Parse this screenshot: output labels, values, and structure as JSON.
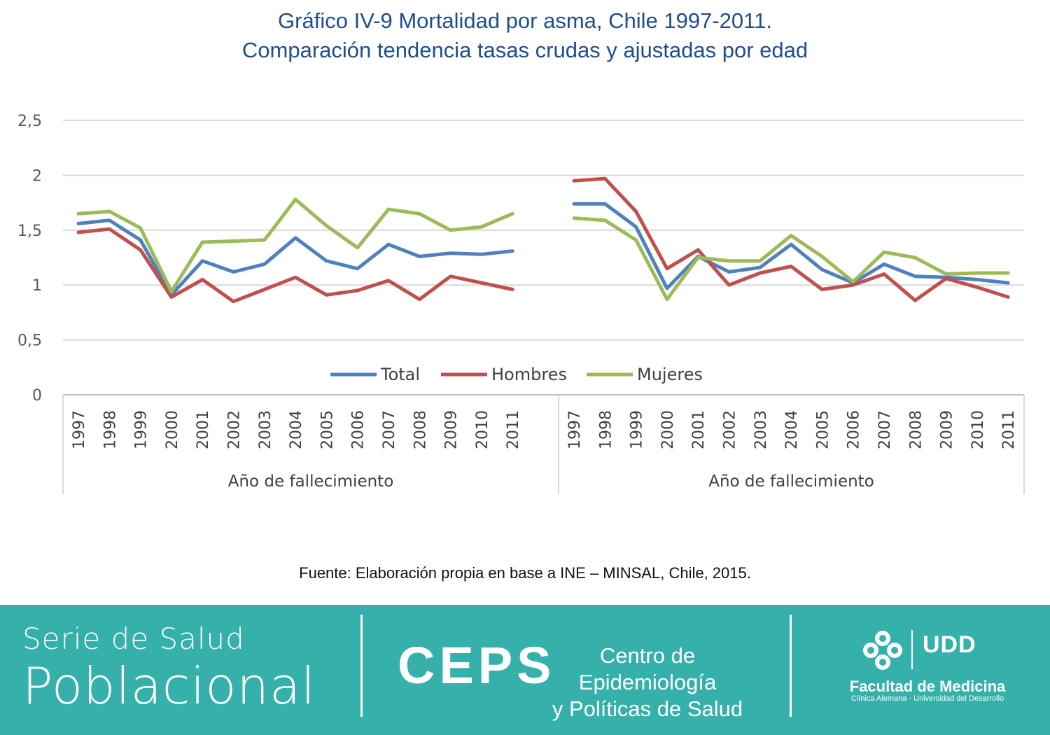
{
  "title_line1": "Gráfico IV-9 Mortalidad por asma, Chile 1997-2011.",
  "title_line2": "Comparación tendencia tasas crudas y ajustadas por edad",
  "source": "Fuente: Elaboración propia en base a INE – MINSAL, Chile, 2015.",
  "footer": {
    "serie_line1": "Serie de Salud",
    "serie_line2": "Poblacional",
    "ceps": "CEPS",
    "ceps_line1": "Centro de Epidemiología",
    "ceps_line2": "y Políticas de Salud",
    "udd": "UDD",
    "facultad": "Facultad de Medicina",
    "facultad_sub": "Clínica Alemana - Universidad del Desarrollo",
    "logo_icon": "ceps-cross-logo-icon"
  },
  "chart_data": {
    "type": "line",
    "ylim": [
      0,
      2.5
    ],
    "y_ticks": [
      "0",
      "0,5",
      "1",
      "1,5",
      "2",
      "2,5"
    ],
    "grid": true,
    "legend_position": "inside-bottom-center",
    "groups": [
      {
        "xlabel": "Año de fallecimiento",
        "categories": [
          "1997",
          "1998",
          "1999",
          "2000",
          "2001",
          "2002",
          "2003",
          "2004",
          "2005",
          "2006",
          "2007",
          "2008",
          "2009",
          "2010",
          "2011"
        ],
        "series": [
          {
            "name": "Total",
            "color": "#4f81bd",
            "values": [
              1.56,
              1.59,
              1.41,
              0.91,
              1.22,
              1.12,
              1.19,
              1.43,
              1.22,
              1.15,
              1.37,
              1.26,
              1.29,
              1.28,
              1.31
            ]
          },
          {
            "name": "Hombres",
            "color": "#c0504d",
            "values": [
              1.48,
              1.51,
              1.32,
              0.89,
              1.05,
              0.85,
              0.96,
              1.07,
              0.91,
              0.95,
              1.04,
              0.87,
              1.08,
              1.02,
              0.96
            ]
          },
          {
            "name": "Mujeres",
            "color": "#9bbb59",
            "values": [
              1.65,
              1.67,
              1.52,
              0.94,
              1.39,
              1.4,
              1.41,
              1.78,
              1.54,
              1.34,
              1.69,
              1.65,
              1.5,
              1.53,
              1.65
            ]
          }
        ]
      },
      {
        "xlabel": "Año de fallecimiento",
        "categories": [
          "1997",
          "1998",
          "1999",
          "2000",
          "2001",
          "2002",
          "2003",
          "2004",
          "2005",
          "2006",
          "2007",
          "2008",
          "2009",
          "2010",
          "2011"
        ],
        "series": [
          {
            "name": "Total",
            "color": "#4f81bd",
            "values": [
              1.74,
              1.74,
              1.53,
              0.97,
              1.26,
              1.12,
              1.16,
              1.37,
              1.14,
              1.02,
              1.19,
              1.08,
              1.07,
              1.05,
              1.02
            ]
          },
          {
            "name": "Hombres",
            "color": "#c0504d",
            "values": [
              1.95,
              1.97,
              1.67,
              1.15,
              1.32,
              1.0,
              1.11,
              1.17,
              0.96,
              1.0,
              1.1,
              0.86,
              1.06,
              0.98,
              0.89
            ]
          },
          {
            "name": "Mujeres",
            "color": "#9bbb59",
            "values": [
              1.61,
              1.59,
              1.41,
              0.87,
              1.25,
              1.22,
              1.22,
              1.45,
              1.26,
              1.03,
              1.3,
              1.25,
              1.1,
              1.11,
              1.11
            ]
          }
        ]
      }
    ],
    "legend": [
      {
        "name": "Total",
        "color": "#4f81bd"
      },
      {
        "name": "Hombres",
        "color": "#c0504d"
      },
      {
        "name": "Mujeres",
        "color": "#9bbb59"
      }
    ]
  }
}
